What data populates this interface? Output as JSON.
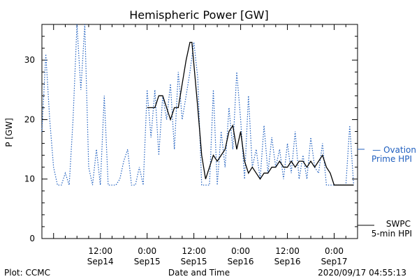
{
  "chart_data": {
    "type": "line",
    "title": "Hemispheric Power [GW]",
    "xlabel": "Date and Time",
    "ylabel": "P [GW]",
    "xlim": [
      "2020-09-13T21:00",
      "2020-09-17T06:00"
    ],
    "ylim": [
      0,
      36
    ],
    "grid": false,
    "yticks": [
      0,
      10,
      20,
      30
    ],
    "xticks": [
      {
        "t": "2020-09-14T12:00",
        "time": "12:00",
        "date": "Sep14"
      },
      {
        "t": "2020-09-15T00:00",
        "time": "0:00",
        "date": "Sep15"
      },
      {
        "t": "2020-09-15T12:00",
        "time": "12:00",
        "date": "Sep15"
      },
      {
        "t": "2020-09-16T00:00",
        "time": "0:00",
        "date": "Sep16"
      },
      {
        "t": "2020-09-16T12:00",
        "time": "12:00",
        "date": "Sep16"
      },
      {
        "t": "2020-09-17T00:00",
        "time": "0:00",
        "date": "Sep17"
      }
    ],
    "series": [
      {
        "name": "Ovation Prime HPI",
        "label_lines": [
          "— Ovation",
          "Prime HPI"
        ],
        "color": "#1f5fbf",
        "style": "dotted",
        "points": [
          [
            "2020-09-13T21:00",
            18
          ],
          [
            "2020-09-13T22:00",
            31
          ],
          [
            "2020-09-13T23:00",
            20
          ],
          [
            "2020-09-14T00:00",
            12
          ],
          [
            "2020-09-14T01:00",
            9
          ],
          [
            "2020-09-14T02:00",
            9
          ],
          [
            "2020-09-14T03:00",
            11
          ],
          [
            "2020-09-14T04:00",
            9
          ],
          [
            "2020-09-14T05:00",
            20
          ],
          [
            "2020-09-14T06:00",
            36
          ],
          [
            "2020-09-14T07:00",
            25
          ],
          [
            "2020-09-14T08:00",
            36
          ],
          [
            "2020-09-14T09:00",
            12
          ],
          [
            "2020-09-14T10:00",
            9
          ],
          [
            "2020-09-14T11:00",
            15
          ],
          [
            "2020-09-14T12:00",
            9
          ],
          [
            "2020-09-14T13:00",
            24
          ],
          [
            "2020-09-14T14:00",
            9
          ],
          [
            "2020-09-14T15:00",
            9
          ],
          [
            "2020-09-14T16:00",
            9
          ],
          [
            "2020-09-14T17:00",
            10
          ],
          [
            "2020-09-14T18:00",
            13
          ],
          [
            "2020-09-14T19:00",
            15
          ],
          [
            "2020-09-14T20:00",
            9
          ],
          [
            "2020-09-14T21:00",
            9
          ],
          [
            "2020-09-14T22:00",
            12
          ],
          [
            "2020-09-14T23:00",
            9
          ],
          [
            "2020-09-15T00:00",
            25
          ],
          [
            "2020-09-15T01:00",
            17
          ],
          [
            "2020-09-15T02:00",
            25
          ],
          [
            "2020-09-15T03:00",
            14
          ],
          [
            "2020-09-15T04:00",
            24
          ],
          [
            "2020-09-15T05:00",
            20
          ],
          [
            "2020-09-15T06:00",
            26
          ],
          [
            "2020-09-15T07:00",
            15
          ],
          [
            "2020-09-15T08:00",
            28
          ],
          [
            "2020-09-15T09:00",
            20
          ],
          [
            "2020-09-15T10:00",
            24
          ],
          [
            "2020-09-15T11:00",
            28
          ],
          [
            "2020-09-15T12:00",
            33
          ],
          [
            "2020-09-15T13:00",
            27
          ],
          [
            "2020-09-15T14:00",
            9
          ],
          [
            "2020-09-15T15:00",
            9
          ],
          [
            "2020-09-15T16:00",
            9
          ],
          [
            "2020-09-15T17:00",
            25
          ],
          [
            "2020-09-15T18:00",
            9
          ],
          [
            "2020-09-15T19:00",
            18
          ],
          [
            "2020-09-15T20:00",
            12
          ],
          [
            "2020-09-15T21:00",
            22
          ],
          [
            "2020-09-15T22:00",
            15
          ],
          [
            "2020-09-15T23:00",
            28
          ],
          [
            "2020-09-16T00:00",
            20
          ],
          [
            "2020-09-16T01:00",
            10
          ],
          [
            "2020-09-16T02:00",
            24
          ],
          [
            "2020-09-16T03:00",
            12
          ],
          [
            "2020-09-16T04:00",
            15
          ],
          [
            "2020-09-16T05:00",
            10
          ],
          [
            "2020-09-16T06:00",
            19
          ],
          [
            "2020-09-16T07:00",
            11
          ],
          [
            "2020-09-16T08:00",
            17
          ],
          [
            "2020-09-16T09:00",
            12
          ],
          [
            "2020-09-16T10:00",
            15
          ],
          [
            "2020-09-16T11:00",
            10
          ],
          [
            "2020-09-16T12:00",
            16
          ],
          [
            "2020-09-16T13:00",
            11
          ],
          [
            "2020-09-16T14:00",
            18
          ],
          [
            "2020-09-16T15:00",
            10
          ],
          [
            "2020-09-16T16:00",
            14
          ],
          [
            "2020-09-16T17:00",
            10
          ],
          [
            "2020-09-16T18:00",
            17
          ],
          [
            "2020-09-16T19:00",
            12
          ],
          [
            "2020-09-16T20:00",
            11
          ],
          [
            "2020-09-16T21:00",
            16
          ],
          [
            "2020-09-16T22:00",
            9
          ],
          [
            "2020-09-16T23:00",
            9
          ],
          [
            "2020-09-17T00:00",
            9
          ],
          [
            "2020-09-17T01:00",
            9
          ],
          [
            "2020-09-17T02:00",
            9
          ],
          [
            "2020-09-17T03:00",
            9
          ],
          [
            "2020-09-17T04:00",
            19
          ],
          [
            "2020-09-17T05:00",
            9
          ]
        ]
      },
      {
        "name": "SWPC 5-min HPI",
        "label_lines": [
          "SWPC",
          "5-min HPI"
        ],
        "color": "#000000",
        "style": "solid",
        "points": [
          [
            "2020-09-15T00:00",
            22
          ],
          [
            "2020-09-15T02:00",
            22
          ],
          [
            "2020-09-15T03:00",
            24
          ],
          [
            "2020-09-15T04:00",
            24
          ],
          [
            "2020-09-15T05:00",
            22
          ],
          [
            "2020-09-15T06:00",
            20
          ],
          [
            "2020-09-15T07:00",
            22
          ],
          [
            "2020-09-15T08:00",
            22
          ],
          [
            "2020-09-15T09:00",
            26
          ],
          [
            "2020-09-15T10:00",
            30
          ],
          [
            "2020-09-15T11:00",
            33
          ],
          [
            "2020-09-15T11:30",
            33
          ],
          [
            "2020-09-15T13:00",
            22
          ],
          [
            "2020-09-15T14:00",
            14
          ],
          [
            "2020-09-15T15:00",
            10
          ],
          [
            "2020-09-15T16:00",
            12
          ],
          [
            "2020-09-15T17:00",
            14
          ],
          [
            "2020-09-15T18:00",
            13
          ],
          [
            "2020-09-15T19:00",
            14
          ],
          [
            "2020-09-15T20:00",
            15
          ],
          [
            "2020-09-15T21:00",
            18
          ],
          [
            "2020-09-15T22:00",
            19
          ],
          [
            "2020-09-15T23:00",
            15
          ],
          [
            "2020-09-16T00:00",
            18
          ],
          [
            "2020-09-16T01:00",
            13
          ],
          [
            "2020-09-16T02:00",
            11
          ],
          [
            "2020-09-16T03:00",
            12
          ],
          [
            "2020-09-16T04:00",
            11
          ],
          [
            "2020-09-16T05:00",
            10
          ],
          [
            "2020-09-16T06:00",
            11
          ],
          [
            "2020-09-16T07:00",
            11
          ],
          [
            "2020-09-16T08:00",
            12
          ],
          [
            "2020-09-16T09:00",
            12
          ],
          [
            "2020-09-16T10:00",
            13
          ],
          [
            "2020-09-16T11:00",
            12
          ],
          [
            "2020-09-16T12:00",
            12
          ],
          [
            "2020-09-16T13:00",
            13
          ],
          [
            "2020-09-16T14:00",
            12
          ],
          [
            "2020-09-16T15:00",
            13
          ],
          [
            "2020-09-16T16:00",
            13
          ],
          [
            "2020-09-16T17:00",
            12
          ],
          [
            "2020-09-16T18:00",
            13
          ],
          [
            "2020-09-16T19:00",
            12
          ],
          [
            "2020-09-16T20:00",
            13
          ],
          [
            "2020-09-16T21:00",
            14
          ],
          [
            "2020-09-16T22:00",
            12
          ],
          [
            "2020-09-16T23:00",
            11
          ],
          [
            "2020-09-17T00:00",
            9
          ],
          [
            "2020-09-17T01:00",
            9
          ],
          [
            "2020-09-17T02:00",
            9
          ],
          [
            "2020-09-17T03:00",
            9
          ],
          [
            "2020-09-17T04:00",
            9
          ],
          [
            "2020-09-17T05:00",
            9
          ]
        ]
      }
    ],
    "footer": {
      "left": "Plot: CCMC",
      "center": "Date and Time",
      "right": "2020/09/17 04:55:13"
    }
  }
}
